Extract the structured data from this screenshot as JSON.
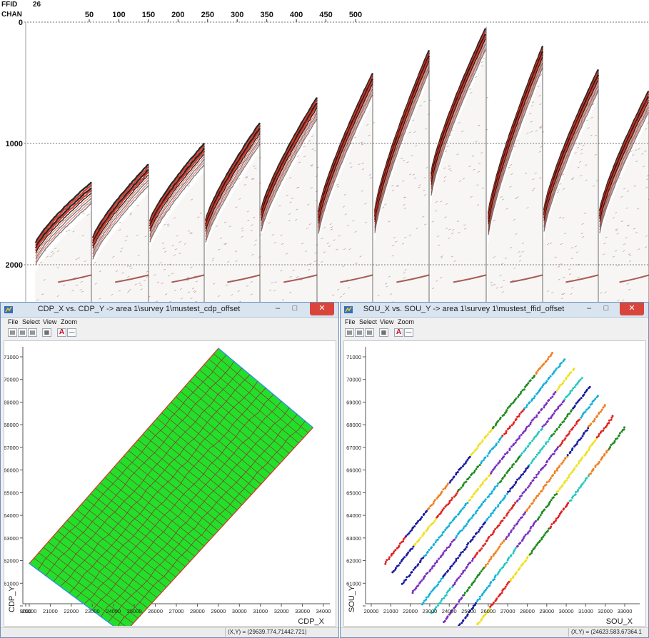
{
  "seismic": {
    "ffid_label": "FFID",
    "ffid_value": "26",
    "chan_label": "CHAN",
    "chan_ticks": [
      "50",
      "100",
      "150",
      "200",
      "250",
      "300",
      "350",
      "400",
      "450",
      "500"
    ],
    "time_ticks": [
      "0",
      "1000",
      "2000"
    ],
    "colors": {
      "wiggle_fill": "#111111",
      "high_amp": "#d52a1a",
      "background": "#ffffff"
    }
  },
  "windows": {
    "left": {
      "title": "CDP_X vs. CDP_Y -> area 1\\survey 1\\mustest_cdp_offset",
      "menus": [
        "File",
        "Select",
        "View",
        "Zoom"
      ],
      "toolbar_icons": [
        "print-icon",
        "copy-icon",
        "paste-icon",
        "grid-icon",
        "annotate-icon",
        "ruler-icon"
      ],
      "x_axis_label": "CDP_X",
      "y_axis_label": "CDP_Y",
      "status_coord": "(X,Y) = (29639.774,71442.721)",
      "colors": {
        "fill": "#22e02a",
        "grid": "#8b3a2f",
        "edge_red": "#e0302a",
        "edge_blue": "#2a9ee0"
      }
    },
    "right": {
      "title": "SOU_X vs. SOU_Y -> area 1\\survey 1\\mustest_ffid_offset",
      "menus": [
        "File",
        "Select",
        "View",
        "Zoom"
      ],
      "toolbar_icons": [
        "print-icon",
        "copy-icon",
        "paste-icon",
        "grid-icon",
        "annotate-icon",
        "ruler-icon"
      ],
      "x_axis_label": "SOU_X",
      "y_axis_label": "SOU_Y",
      "status_coord": "(X,Y) = (24623.583,67364.1",
      "colors": [
        "#1a1aa0",
        "#11b0d8",
        "#1e8a1e",
        "#f0e020",
        "#f08020",
        "#e02020",
        "#7b2fbe",
        "#23c8c0"
      ]
    }
  },
  "chart_data": [
    {
      "type": "scatter",
      "title": "CDP_X vs. CDP_Y -> area 1\\survey 1\\mustest_cdp_offset",
      "xlabel": "CDP_X",
      "ylabel": "CDP_Y",
      "x_ticks": [
        "9000",
        "20000",
        "21000",
        "22000",
        "23000",
        "24000",
        "25000",
        "26000",
        "27000",
        "28000",
        "29000",
        "30000",
        "31000",
        "32000",
        "33000",
        "34000"
      ],
      "y_ticks": [
        "",
        "",
        "61000",
        "62000",
        "63000",
        "64000",
        "65000",
        "66000",
        "67000",
        "68000",
        "69000",
        "70000",
        "71000"
      ],
      "xlim": [
        19600,
        34900
      ],
      "ylim": [
        58900,
        71600
      ],
      "polygon": [
        [
          29000,
          71500
        ],
        [
          33500,
          68000
        ],
        [
          24500,
          58900
        ],
        [
          20000,
          62000
        ]
      ],
      "grid": false
    },
    {
      "type": "scatter",
      "title": "SOU_X vs. SOU_Y -> area 1\\survey 1\\mustest_ffid_offset",
      "xlabel": "SOU_X",
      "ylabel": "SOU_Y",
      "x_ticks": [
        "20000",
        "21000",
        "22000",
        "23000",
        "24000",
        "25000",
        "26000",
        "27000",
        "28000",
        "29000",
        "30000",
        "31000",
        "32000",
        "33000"
      ],
      "y_ticks": [
        "",
        "",
        "61000",
        "62000",
        "63000",
        "64000",
        "65000",
        "66000",
        "67000",
        "68000",
        "69000",
        "70000",
        "71000"
      ],
      "xlim": [
        19600,
        33600
      ],
      "ylim": [
        58900,
        71600
      ],
      "source_lines": [
        [
          [
            20700,
            62000
          ],
          [
            29300,
            71300
          ]
        ],
        [
          [
            21100,
            61600
          ],
          [
            29900,
            71000
          ]
        ],
        [
          [
            21600,
            61100
          ],
          [
            30400,
            70600
          ]
        ],
        [
          [
            22100,
            60700
          ],
          [
            30800,
            70200
          ]
        ],
        [
          [
            22600,
            60200
          ],
          [
            31200,
            69800
          ]
        ],
        [
          [
            23100,
            59800
          ],
          [
            31600,
            69400
          ]
        ],
        [
          [
            23700,
            59400
          ],
          [
            32000,
            69000
          ]
        ],
        [
          [
            24400,
            59100
          ],
          [
            32400,
            68500
          ]
        ],
        [
          [
            25100,
            58900
          ],
          [
            33000,
            68000
          ]
        ]
      ],
      "grid": false
    }
  ]
}
